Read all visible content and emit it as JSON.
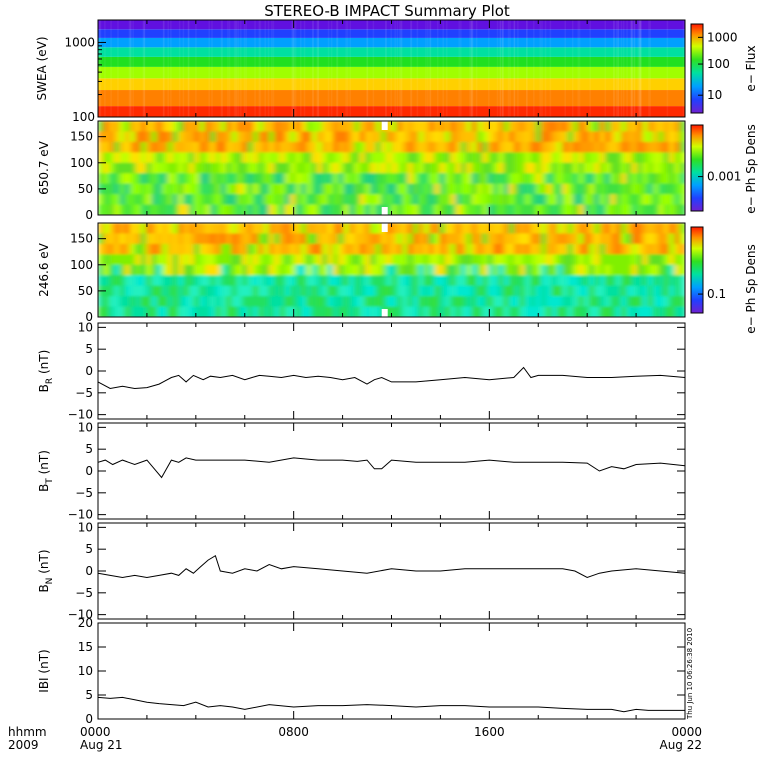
{
  "title": "STEREO-B IMPACT Summary Plot",
  "chart_data": [
    {
      "type": "heatmap",
      "ylabel": "SWEA (eV)",
      "yscale": "log",
      "ylim": [
        100,
        2000
      ],
      "yticks": [
        "1000",
        "100"
      ],
      "colorbar": {
        "label": "e− Flux",
        "scale": "log",
        "ticks": [
          "1000",
          "100",
          "10"
        ]
      },
      "bands": [
        {
          "from": 100,
          "to": 140,
          "color": "#ff2a00"
        },
        {
          "from": 140,
          "to": 230,
          "color": "#ff8000"
        },
        {
          "from": 230,
          "to": 330,
          "color": "#ffd000"
        },
        {
          "from": 330,
          "to": 470,
          "color": "#a0ff00"
        },
        {
          "from": 470,
          "to": 640,
          "color": "#20e020"
        },
        {
          "from": 640,
          "to": 860,
          "color": "#00e0a0"
        },
        {
          "from": 860,
          "to": 1150,
          "color": "#00a0ff"
        },
        {
          "from": 1150,
          "to": 1500,
          "color": "#2040ff"
        },
        {
          "from": 1500,
          "to": 2000,
          "color": "#6010e0"
        }
      ]
    },
    {
      "type": "heatmap",
      "ylabel": "650.7 eV",
      "ylim": [
        0,
        180
      ],
      "yticks": [
        "150",
        "100",
        "50",
        "0"
      ],
      "colorbar": {
        "label": "e− Ph Sp Dens",
        "scale": "log",
        "ticks": [
          "0.001"
        ]
      },
      "data_gap_hhmm": "1140"
    },
    {
      "type": "heatmap",
      "ylabel": "246.6 eV",
      "ylim": [
        0,
        180
      ],
      "yticks": [
        "150",
        "100",
        "50",
        "0"
      ],
      "colorbar": {
        "label": "e− Ph Sp Dens",
        "scale": "log",
        "ticks": [
          "0.1"
        ]
      },
      "data_gap_hhmm": "1140"
    },
    {
      "type": "line",
      "ylabel": "B",
      "ylabel_sub": "R",
      "ylabel_unit": "(nT)",
      "ylim": [
        -11,
        11
      ],
      "yticks": [
        "10",
        "5",
        "0",
        "−5",
        "−10"
      ],
      "x_hours": [
        0,
        0.5,
        1,
        1.5,
        2,
        2.5,
        3,
        3.3,
        3.6,
        3.9,
        4.3,
        4.6,
        5,
        5.5,
        6,
        6.3,
        6.6,
        7,
        7.5,
        8,
        8.5,
        9,
        9.5,
        10,
        10.5,
        11,
        11.3,
        11.6,
        12,
        13,
        14,
        15,
        16,
        17,
        17.4,
        17.7,
        18,
        19,
        20,
        21,
        22,
        23,
        24
      ],
      "values": [
        -2.5,
        -4,
        -3.5,
        -4,
        -3.8,
        -3,
        -1.5,
        -1,
        -2.5,
        -1,
        -2,
        -1.2,
        -1.5,
        -1,
        -2,
        -1.5,
        -1,
        -1.2,
        -1.5,
        -1,
        -1.5,
        -1.2,
        -1.5,
        -2,
        -1.5,
        -3,
        -2,
        -1.5,
        -2.5,
        -2.5,
        -2,
        -1.5,
        -2,
        -1.5,
        0.8,
        -1.5,
        -1,
        -1,
        -1.5,
        -1.5,
        -1.2,
        -1,
        -1.5
      ]
    },
    {
      "type": "line",
      "ylabel": "B",
      "ylabel_sub": "T",
      "ylabel_unit": "(nT)",
      "ylim": [
        -11,
        11
      ],
      "yticks": [
        "10",
        "5",
        "0",
        "−5",
        "−10"
      ],
      "x_hours": [
        0,
        0.3,
        0.6,
        1,
        1.5,
        2,
        2.3,
        2.6,
        3,
        3.3,
        3.6,
        4,
        5,
        6,
        7,
        8,
        9,
        10,
        10.6,
        11,
        11.3,
        11.6,
        12,
        13,
        14,
        15,
        16,
        17,
        18,
        19,
        20,
        20.5,
        21,
        21.5,
        22,
        23,
        24
      ],
      "values": [
        2,
        2.5,
        1.5,
        2.5,
        1.5,
        2.5,
        0.5,
        -1.5,
        2.5,
        2,
        3,
        2.5,
        2.5,
        2.5,
        2,
        3,
        2.5,
        2.5,
        2.2,
        2.5,
        0.5,
        0.5,
        2.5,
        2,
        2,
        2,
        2.5,
        2,
        2,
        2,
        1.8,
        0,
        1,
        0.5,
        1.5,
        1.8,
        1.2
      ]
    },
    {
      "type": "line",
      "ylabel": "B",
      "ylabel_sub": "N",
      "ylabel_unit": "(nT)",
      "ylim": [
        -11,
        11
      ],
      "yticks": [
        "10",
        "5",
        "0",
        "−5",
        "−10"
      ],
      "x_hours": [
        0,
        0.5,
        1,
        1.5,
        2,
        2.5,
        3,
        3.3,
        3.6,
        3.9,
        4.2,
        4.5,
        4.8,
        5,
        5.5,
        6,
        6.5,
        7,
        7.5,
        8,
        9,
        10,
        11,
        12,
        13,
        14,
        15,
        16,
        17,
        18,
        19,
        19.5,
        20,
        20.5,
        21,
        22,
        23,
        24
      ],
      "values": [
        -0.5,
        -1,
        -1.5,
        -1,
        -1.5,
        -1,
        -0.5,
        -1,
        0.5,
        -0.5,
        1,
        2.5,
        3.5,
        0,
        -0.5,
        0.5,
        0,
        1.5,
        0.5,
        1,
        0.5,
        0,
        -0.5,
        0.5,
        0,
        0,
        0.5,
        0.5,
        0.5,
        0.5,
        0.5,
        0,
        -1.5,
        -0.5,
        0,
        0.5,
        0,
        -0.5
      ]
    },
    {
      "type": "line",
      "ylabel": "IBI (nT)",
      "ylim": [
        0,
        20
      ],
      "yticks": [
        "20",
        "15",
        "10",
        "5",
        "0"
      ],
      "x_hours": [
        0,
        0.5,
        1,
        1.5,
        2,
        2.5,
        3,
        3.5,
        4,
        4.5,
        5,
        5.5,
        6,
        7,
        8,
        9,
        10,
        11,
        12,
        13,
        14,
        15,
        16,
        17,
        18,
        19,
        20,
        21,
        21.5,
        22,
        22.5,
        23,
        24
      ],
      "values": [
        4.5,
        4.3,
        4.5,
        4,
        3.5,
        3.2,
        3,
        2.8,
        3.5,
        2.5,
        2.8,
        2.5,
        2,
        3,
        2.5,
        2.8,
        2.8,
        3,
        2.8,
        2.5,
        2.8,
        2.8,
        2.5,
        2.5,
        2.5,
        2.2,
        2,
        2,
        1.5,
        2,
        1.8,
        1.8,
        1.8
      ]
    }
  ],
  "x_axis": {
    "ticks": [
      {
        "hhmm": "0000",
        "date": "Aug 21"
      },
      {
        "hhmm": "0800",
        "date": ""
      },
      {
        "hhmm": "1600",
        "date": ""
      },
      {
        "hhmm": "0000",
        "date": "Aug 22"
      }
    ],
    "hhmm_label": "hhmm",
    "year_label": "2009"
  },
  "timestamp": "Thu Jun 10 06:26:38 2010",
  "colors": {
    "line": "#000000",
    "frame": "#000000",
    "gap": "#ffffff"
  }
}
